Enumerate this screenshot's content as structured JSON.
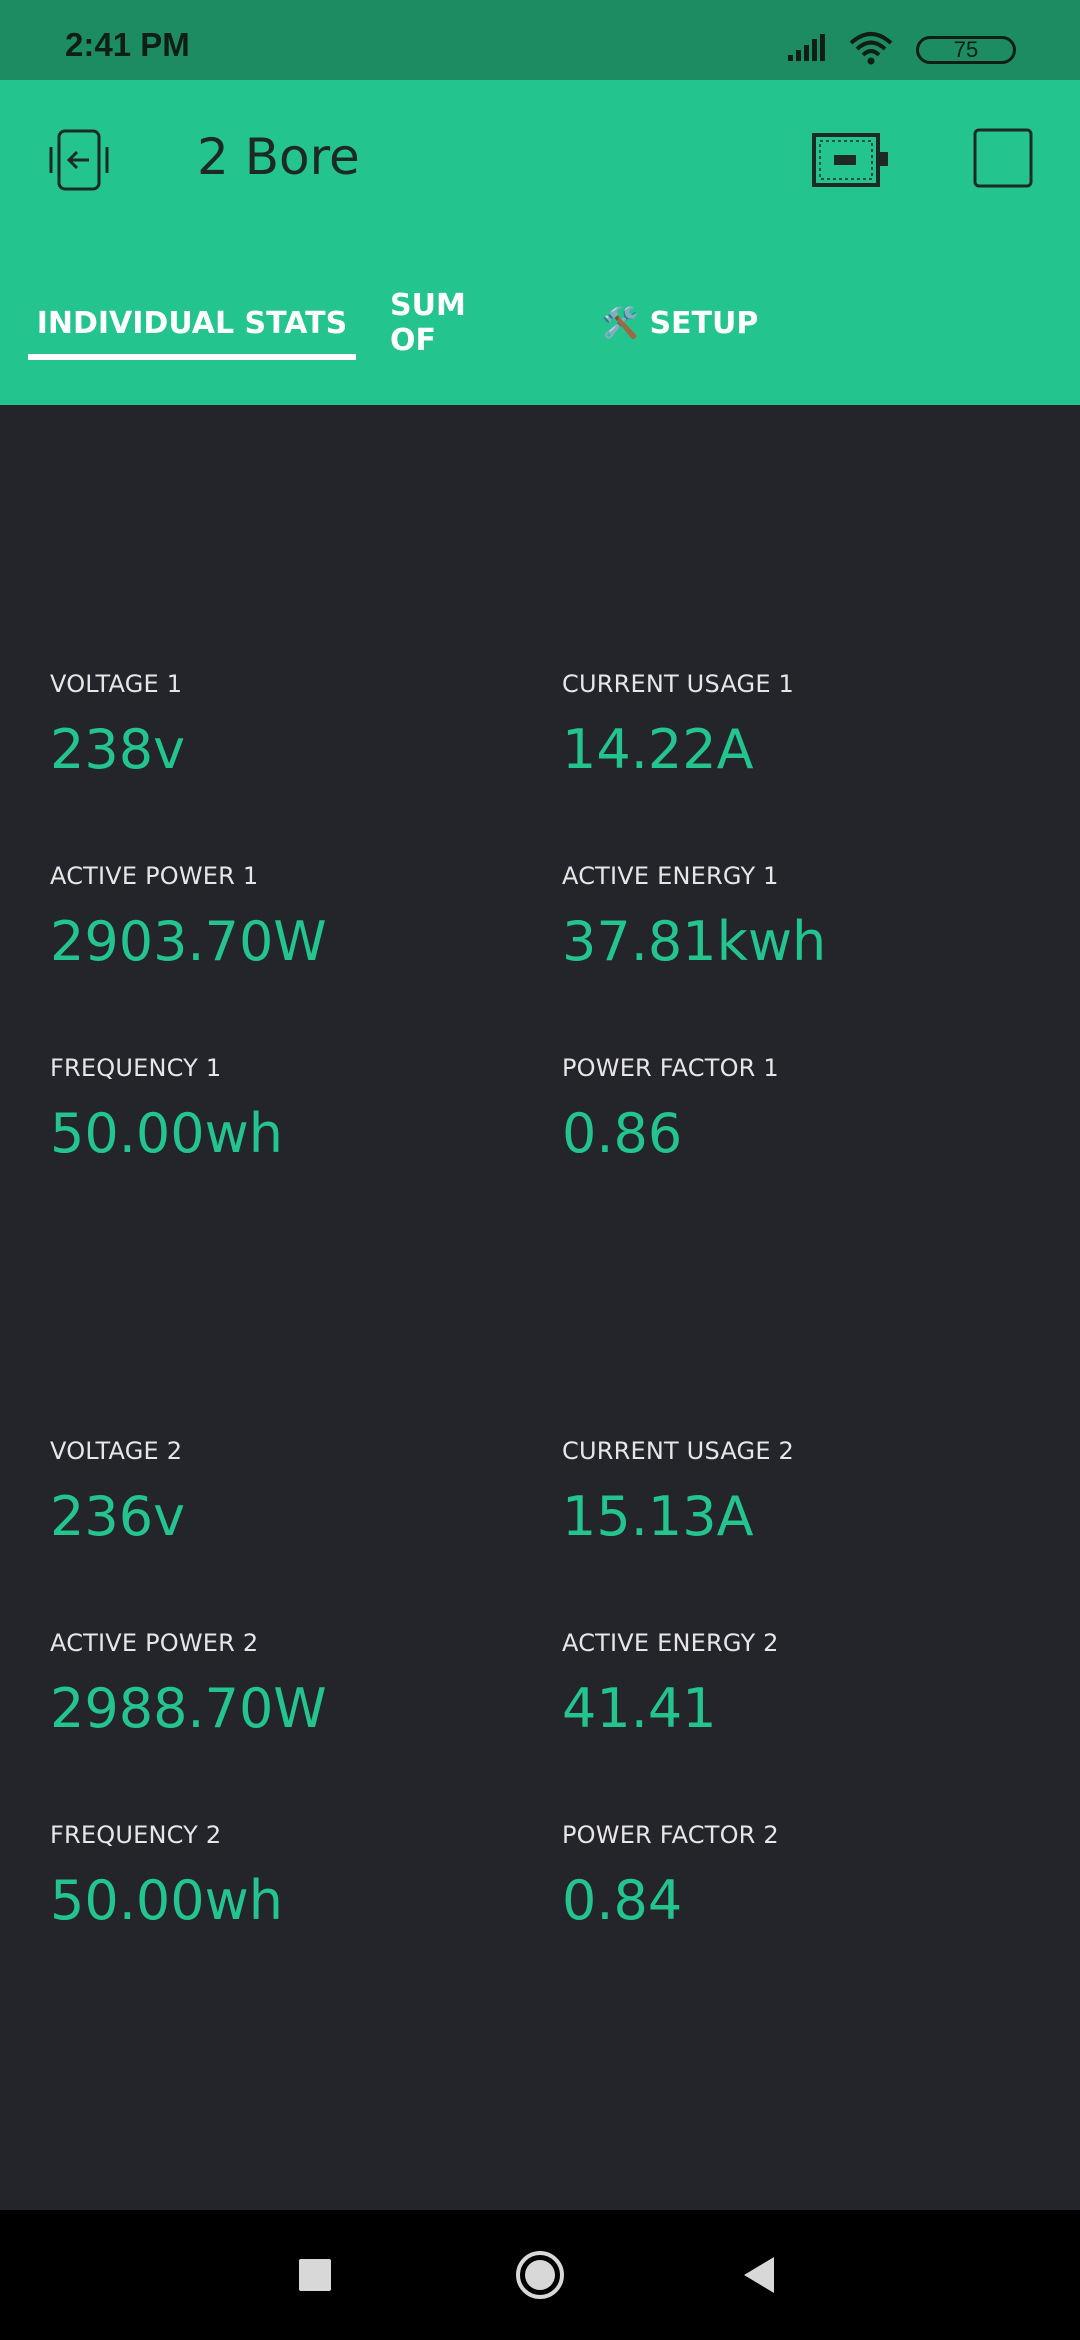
{
  "status_bar": {
    "time": "2:41 PM",
    "battery": "75",
    "icons": [
      "signal-icon",
      "wifi-icon",
      "battery-icon"
    ]
  },
  "header": {
    "title": "2 Bore",
    "icons": [
      "exit-icon",
      "device-icon",
      "square-icon"
    ]
  },
  "tabs": [
    {
      "label": "INDIVIDUAL STATS",
      "active": true
    },
    {
      "label": "SUM OF",
      "active": false
    },
    {
      "label": "🛠️ SETUP",
      "active": false
    }
  ],
  "stats": {
    "voltage_1": {
      "label": "VOLTAGE 1",
      "value": "238v"
    },
    "current_usage_1": {
      "label": "CURRENT USAGE 1",
      "value": "14.22A"
    },
    "active_power_1": {
      "label": "ACTIVE POWER 1",
      "value": "2903.70W"
    },
    "active_energy_1": {
      "label": "ACTIVE ENERGY 1",
      "value": "37.81kwh"
    },
    "frequency_1": {
      "label": "FREQUENCY 1",
      "value": "50.00wh"
    },
    "power_factor_1": {
      "label": "POWER FACTOR 1",
      "value": "0.86"
    },
    "voltage_2": {
      "label": "VOLTAGE 2",
      "value": "236v"
    },
    "current_usage_2": {
      "label": "CURRENT USAGE 2",
      "value": "15.13A"
    },
    "active_power_2": {
      "label": "ACTIVE POWER 2",
      "value": "2988.70W"
    },
    "active_energy_2": {
      "label": "ACTIVE ENERGY 2",
      "value": "41.41"
    },
    "frequency_2": {
      "label": "FREQUENCY 2",
      "value": "50.00wh"
    },
    "power_factor_2": {
      "label": "POWER FACTOR 2",
      "value": "0.84"
    }
  },
  "colors": {
    "accent": "#23c48e",
    "status_bar": "#1e8c63",
    "background": "#23252b"
  },
  "nav": [
    "recents-icon",
    "home-icon",
    "back-icon"
  ]
}
